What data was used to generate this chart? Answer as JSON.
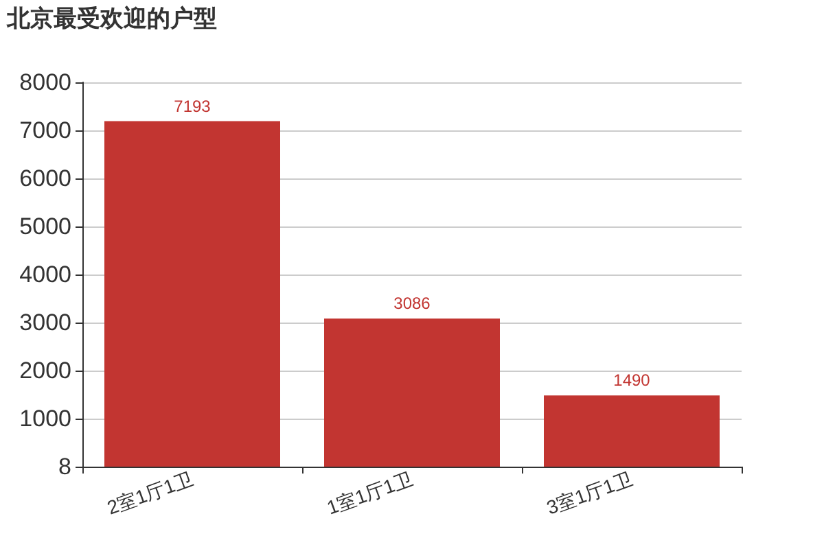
{
  "chart_data": {
    "type": "bar",
    "title": "北京最受欢迎的户型",
    "categories": [
      "2室1厅1卫",
      "1室1厅1卫",
      "3室1厅1卫"
    ],
    "values": [
      7193,
      3086,
      1490
    ],
    "color": "#c23531",
    "ylim": [
      8,
      8000
    ],
    "yticks": [
      8,
      1000,
      2000,
      3000,
      4000,
      5000,
      6000,
      7000,
      8000
    ],
    "grid": "y",
    "data_labels": true
  }
}
